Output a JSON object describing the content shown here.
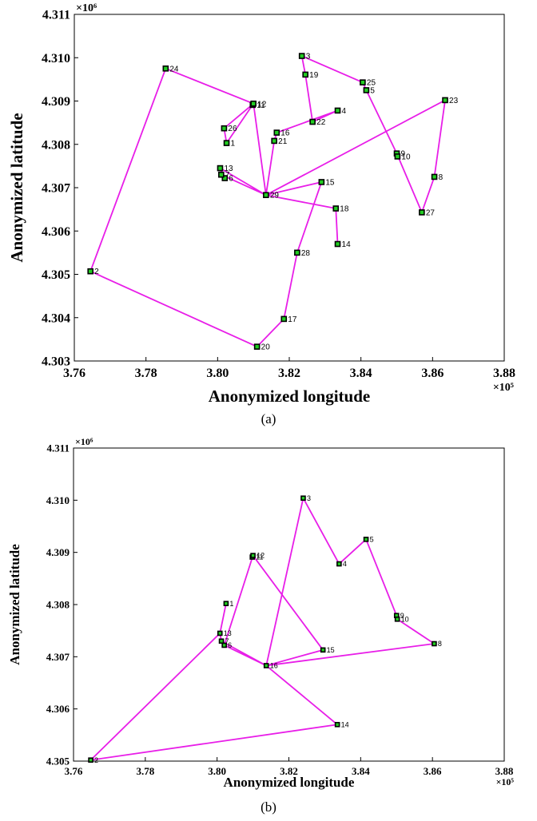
{
  "figures": [
    {
      "caption": "(a)",
      "xlabel": "Anonymized longitude",
      "ylabel": "Anonymized latitude",
      "x_exponent": "×10⁵",
      "y_exponent": "×10⁶",
      "x_ticks": [
        "3.76",
        "3.78",
        "3.80",
        "3.82",
        "3.84",
        "3.86",
        "3.88"
      ],
      "y_ticks": [
        "4.303",
        "4.304",
        "4.305",
        "4.306",
        "4.307",
        "4.308",
        "4.309",
        "4.310",
        "4.311"
      ],
      "colors": {
        "line": "#e81ee8",
        "marker_fill": "#22cc22",
        "marker_edge": "#000000"
      }
    },
    {
      "caption": "(b)",
      "xlabel": "Anonymized longitude",
      "ylabel": "Anonymized latitude",
      "x_exponent": "×10⁵",
      "y_exponent": "×10⁶",
      "x_ticks": [
        "3.76",
        "3.78",
        "3.80",
        "3.82",
        "3.84",
        "3.86",
        "3.88"
      ],
      "y_ticks": [
        "4.305",
        "4.306",
        "4.307",
        "4.308",
        "4.309",
        "4.310",
        "4.311"
      ],
      "colors": {
        "line": "#e81ee8",
        "marker_fill": "#22cc22",
        "marker_edge": "#000000"
      }
    }
  ],
  "chart_data": [
    {
      "type": "line",
      "title": "",
      "xlabel": "Anonymized longitude",
      "ylabel": "Anonymized latitude",
      "x_scale": 100000,
      "y_scale": 1000000,
      "xlim": [
        3.76,
        3.88
      ],
      "ylim": [
        4.303,
        4.311
      ],
      "grid": false,
      "points": [
        {
          "label": "1",
          "x": 3.8025,
          "y": 4.30803
        },
        {
          "label": "2",
          "x": 3.7645,
          "y": 4.30507
        },
        {
          "label": "3",
          "x": 3.8235,
          "y": 4.31004
        },
        {
          "label": "4",
          "x": 3.8335,
          "y": 4.30878
        },
        {
          "label": "5",
          "x": 3.8415,
          "y": 4.30925
        },
        {
          "label": "6",
          "x": 3.802,
          "y": 4.30722
        },
        {
          "label": "7",
          "x": 3.801,
          "y": 4.3073
        },
        {
          "label": "8",
          "x": 3.8605,
          "y": 4.30725
        },
        {
          "label": "9",
          "x": 3.85,
          "y": 4.30779
        },
        {
          "label": "10",
          "x": 3.8502,
          "y": 4.30772
        },
        {
          "label": "11",
          "x": 3.8098,
          "y": 4.30891
        },
        {
          "label": "12",
          "x": 3.81,
          "y": 4.30894
        },
        {
          "label": "13",
          "x": 3.8007,
          "y": 4.30745
        },
        {
          "label": "14",
          "x": 3.8335,
          "y": 4.3057
        },
        {
          "label": "15",
          "x": 3.829,
          "y": 4.30713
        },
        {
          "label": "16",
          "x": 3.8165,
          "y": 4.30827
        },
        {
          "label": "17",
          "x": 3.8185,
          "y": 4.30397
        },
        {
          "label": "18",
          "x": 3.833,
          "y": 4.30652
        },
        {
          "label": "19",
          "x": 3.8245,
          "y": 4.30961
        },
        {
          "label": "20",
          "x": 3.811,
          "y": 4.30333
        },
        {
          "label": "21",
          "x": 3.8158,
          "y": 4.30808
        },
        {
          "label": "22",
          "x": 3.8265,
          "y": 4.30852
        },
        {
          "label": "23",
          "x": 3.8635,
          "y": 4.30902
        },
        {
          "label": "24",
          "x": 3.7855,
          "y": 4.30975
        },
        {
          "label": "25",
          "x": 3.8405,
          "y": 4.30943
        },
        {
          "label": "26",
          "x": 3.8018,
          "y": 4.30837
        },
        {
          "label": "27",
          "x": 3.857,
          "y": 4.30643
        },
        {
          "label": "28",
          "x": 3.8222,
          "y": 4.3055
        },
        {
          "label": "29",
          "x": 3.8135,
          "y": 4.30683
        }
      ],
      "path": [
        "2",
        "20",
        "17",
        "28",
        "15",
        "29",
        "23",
        "8",
        "27",
        "9",
        "5",
        "25",
        "3",
        "19",
        "22",
        "4",
        "16",
        "21",
        "29",
        "13",
        "6",
        "7",
        "29",
        "18",
        "14",
        "18",
        "29",
        "12",
        "1",
        "26",
        "12",
        "24",
        "2"
      ]
    },
    {
      "type": "line",
      "title": "",
      "xlabel": "Anonymized longitude",
      "ylabel": "Anonymized latitude",
      "x_scale": 100000,
      "y_scale": 1000000,
      "xlim": [
        3.76,
        3.88
      ],
      "ylim": [
        4.305,
        4.311
      ],
      "grid": false,
      "points": [
        {
          "label": "1",
          "x": 3.8025,
          "y": 4.30802
        },
        {
          "label": "2",
          "x": 3.7648,
          "y": 4.30502
        },
        {
          "label": "3",
          "x": 3.824,
          "y": 4.31004
        },
        {
          "label": "4",
          "x": 3.834,
          "y": 4.30878
        },
        {
          "label": "5",
          "x": 3.8415,
          "y": 4.30925
        },
        {
          "label": "6",
          "x": 3.802,
          "y": 4.30722
        },
        {
          "label": "7",
          "x": 3.8012,
          "y": 4.3073
        },
        {
          "label": "8",
          "x": 3.8605,
          "y": 4.30725
        },
        {
          "label": "9",
          "x": 3.85,
          "y": 4.30779
        },
        {
          "label": "10",
          "x": 3.8502,
          "y": 4.30772
        },
        {
          "label": "11",
          "x": 3.8098,
          "y": 4.30891
        },
        {
          "label": "12",
          "x": 3.81,
          "y": 4.30894
        },
        {
          "label": "13",
          "x": 3.8008,
          "y": 4.30745
        },
        {
          "label": "14",
          "x": 3.8335,
          "y": 4.3057
        },
        {
          "label": "15",
          "x": 3.8295,
          "y": 4.30713
        },
        {
          "label": "16",
          "x": 3.8137,
          "y": 4.30683
        }
      ],
      "path": [
        "2",
        "13",
        "7",
        "6",
        "16",
        "14",
        "2"
      ],
      "segments": [
        [
          "13",
          "1"
        ],
        [
          "7",
          "16"
        ],
        [
          "16",
          "15"
        ],
        [
          "15",
          "12"
        ],
        [
          "12",
          "6"
        ],
        [
          "16",
          "3"
        ],
        [
          "3",
          "4"
        ],
        [
          "4",
          "5"
        ],
        [
          "5",
          "9"
        ],
        [
          "9",
          "10"
        ],
        [
          "10",
          "8"
        ],
        [
          "8",
          "16"
        ]
      ]
    }
  ]
}
